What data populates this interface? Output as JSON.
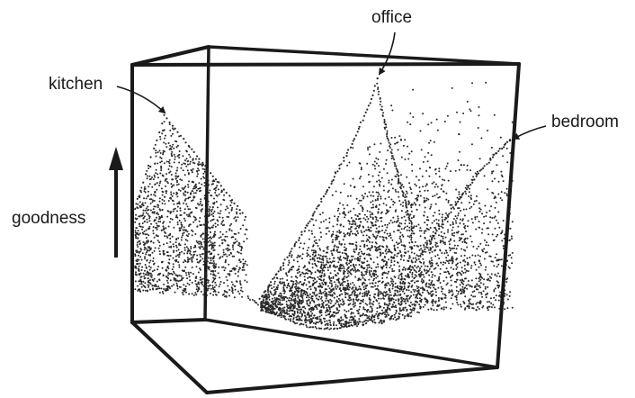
{
  "labels": {
    "office": "office",
    "kitchen": "kitchen",
    "bedroom": "bedroom",
    "goodness": "goodness"
  },
  "colors": {
    "ink": "#1a1a1a",
    "dots": "#2a2a2a",
    "background": "#ffffff"
  }
}
